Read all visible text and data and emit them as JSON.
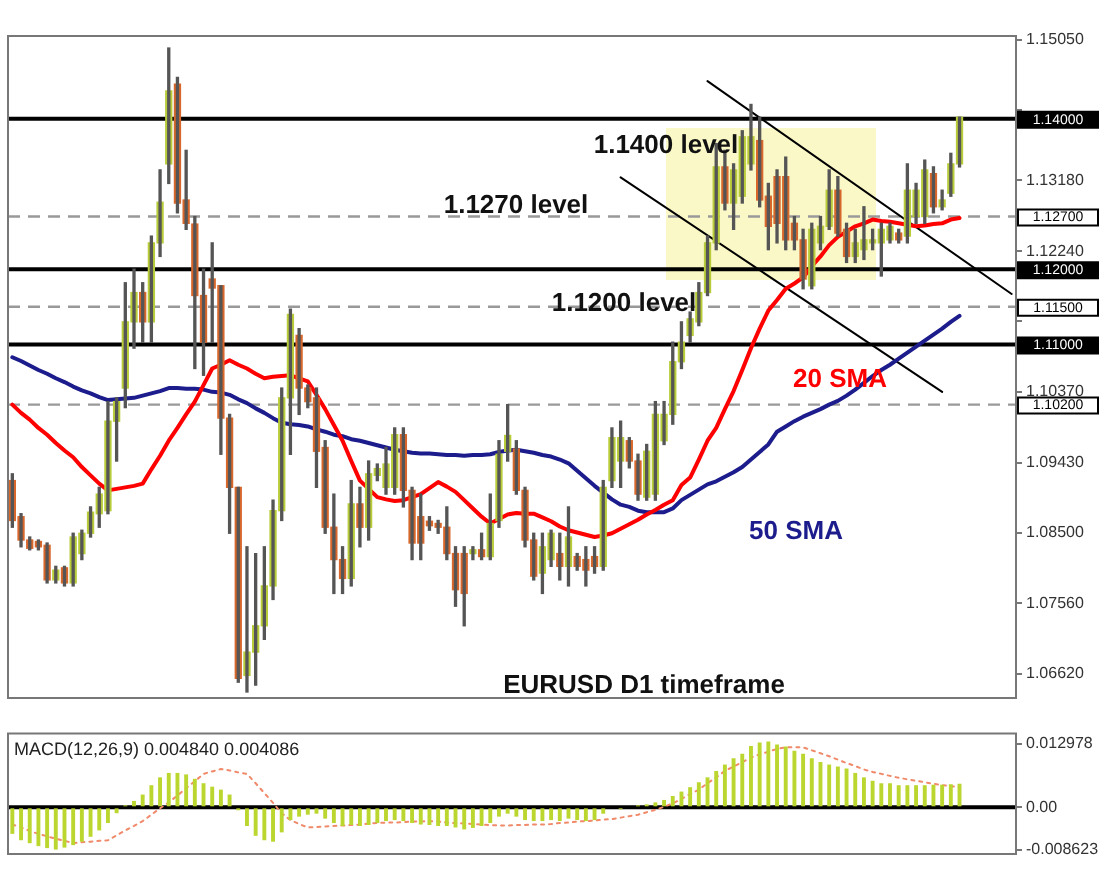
{
  "chart_data": [
    {
      "type": "candlestick",
      "categories": [
        null,
        null,
        null,
        null,
        null,
        null,
        null,
        null,
        null,
        null,
        null,
        null,
        null,
        null,
        null,
        null,
        null,
        null,
        null,
        null,
        null,
        null,
        null,
        null,
        null,
        null,
        null,
        null,
        null,
        null,
        null,
        null,
        null,
        null,
        null,
        null,
        null,
        null,
        null,
        null,
        null,
        null,
        null,
        null,
        null,
        null,
        null,
        null,
        null,
        null,
        null,
        null,
        null,
        null,
        null,
        null,
        null,
        null,
        null,
        null,
        null,
        null,
        null,
        null,
        null,
        null,
        null,
        null,
        null,
        null,
        null,
        null,
        null,
        null,
        null,
        null,
        null,
        null,
        null,
        null,
        null,
        null,
        null,
        null,
        null,
        null,
        null,
        null,
        null,
        null,
        null,
        null,
        null,
        null,
        null,
        null,
        null,
        null,
        null,
        null,
        null,
        null,
        null,
        null,
        null,
        null,
        null,
        null,
        null,
        null,
        null,
        null,
        null,
        null,
        null,
        null
      ],
      "ohlc": [
        [
          1.0919,
          1.0928,
          1.0857,
          1.0866
        ],
        [
          1.0871,
          1.0875,
          1.0831,
          1.084
        ],
        [
          1.084,
          1.0844,
          1.0827,
          1.0829
        ],
        [
          1.0838,
          1.084,
          1.0827,
          1.0831
        ],
        [
          1.0833,
          1.0836,
          1.0783,
          1.0787
        ],
        [
          1.0787,
          1.0805,
          1.0783,
          1.08
        ],
        [
          1.0803,
          1.0805,
          1.0779,
          1.0783
        ],
        [
          1.0783,
          1.0849,
          1.0779,
          1.0844
        ],
        [
          1.0822,
          1.0853,
          1.0814,
          1.0849
        ],
        [
          1.0849,
          1.0884,
          1.0844,
          1.0877
        ],
        [
          1.0875,
          1.091,
          1.0857,
          1.0901
        ],
        [
          1.0879,
          1.1024,
          1.0875,
          1.0998
        ],
        [
          1.0998,
          1.1029,
          1.0945,
          1.1024
        ],
        [
          1.1042,
          1.1182,
          1.1016,
          1.113
        ],
        [
          1.113,
          1.12,
          1.1095,
          1.1169
        ],
        [
          1.1169,
          1.1182,
          1.1103,
          1.113
        ],
        [
          1.113,
          1.1244,
          1.1103,
          1.1235
        ],
        [
          1.1235,
          1.1332,
          1.1217,
          1.1289
        ],
        [
          1.134,
          1.1494,
          1.1314,
          1.1437
        ],
        [
          1.1446,
          1.1455,
          1.1275,
          1.1288
        ],
        [
          1.1292,
          1.1358,
          1.1253,
          1.1261
        ],
        [
          1.126,
          1.127,
          1.1068,
          1.1165
        ],
        [
          1.1165,
          1.12,
          1.1059,
          1.1103
        ],
        [
          1.1187,
          1.1235,
          1.1103,
          1.1175
        ],
        [
          1.1178,
          1.1178,
          1.0954,
          1.1002
        ],
        [
          1.1002,
          1.1007,
          1.0849,
          1.091
        ],
        [
          1.091,
          1.091,
          1.0651,
          1.0656
        ],
        [
          1.066,
          1.0831,
          1.0638,
          1.0691
        ],
        [
          1.0691,
          1.0822,
          1.0647,
          1.0726
        ],
        [
          1.0726,
          1.0831,
          1.0708,
          1.0779
        ],
        [
          1.0779,
          1.0893,
          1.0761,
          1.0879
        ],
        [
          1.0879,
          1.1042,
          1.0866,
          1.1029
        ],
        [
          1.1029,
          1.1147,
          1.0954,
          1.114
        ],
        [
          1.1112,
          1.1121,
          1.1007,
          1.1042
        ],
        [
          1.1042,
          1.1046,
          1.1016,
          1.1024
        ],
        [
          1.1029,
          1.1042,
          1.091,
          1.0958
        ],
        [
          1.0963,
          1.0972,
          1.0849,
          1.0857
        ],
        [
          1.0857,
          1.0901,
          1.0769,
          1.0814
        ],
        [
          1.0814,
          1.0831,
          1.0769,
          1.0789
        ],
        [
          1.0789,
          1.0919,
          1.0779,
          1.0888
        ],
        [
          1.0888,
          1.091,
          1.0831,
          1.0857
        ],
        [
          1.0857,
          1.0945,
          1.084,
          1.0928
        ],
        [
          1.0926,
          1.0941,
          1.0919,
          1.0935
        ],
        [
          1.091,
          1.0963,
          1.0901,
          1.0941
        ],
        [
          1.091,
          1.0989,
          1.0901,
          1.098
        ],
        [
          1.098,
          1.0989,
          1.0884,
          1.0906
        ],
        [
          1.0906,
          1.091,
          1.0814,
          1.0836
        ],
        [
          1.0871,
          1.0901,
          1.0814,
          1.0836
        ],
        [
          1.0865,
          1.0871,
          1.0853,
          1.0859
        ],
        [
          1.0862,
          1.0866,
          1.0849,
          1.0857
        ],
        [
          1.0857,
          1.0884,
          1.0814,
          1.0822
        ],
        [
          1.0822,
          1.0831,
          1.0752,
          1.0774
        ],
        [
          1.0822,
          1.0831,
          1.0726,
          1.0769
        ],
        [
          1.0822,
          1.0831,
          1.0814,
          1.0827
        ],
        [
          1.0827,
          1.0849,
          1.0814,
          1.0818
        ],
        [
          1.0818,
          1.0901,
          1.0814,
          1.0862
        ],
        [
          1.0866,
          1.0972,
          1.0857,
          1.0954
        ],
        [
          1.0958,
          1.102,
          1.0945,
          1.0979
        ],
        [
          1.0961,
          1.0972,
          1.0901,
          1.0906
        ],
        [
          1.0906,
          1.091,
          1.0831,
          1.084
        ],
        [
          1.084,
          1.0849,
          1.0787,
          1.0792
        ],
        [
          1.0796,
          1.0849,
          1.0769,
          1.0831
        ],
        [
          1.0814,
          1.0853,
          1.0805,
          1.0849
        ],
        [
          1.0822,
          1.0849,
          1.0787,
          1.0805
        ],
        [
          1.0805,
          1.0884,
          1.0779,
          1.0844
        ],
        [
          1.0818,
          1.0822,
          1.08,
          1.0805
        ],
        [
          1.0814,
          1.0831,
          1.0779,
          1.08
        ],
        [
          1.0818,
          1.0831,
          1.0796,
          1.0805
        ],
        [
          1.0805,
          1.0919,
          1.08,
          1.091
        ],
        [
          1.0919,
          1.0989,
          1.091,
          1.0976
        ],
        [
          1.0945,
          1.0998,
          1.091,
          1.0976
        ],
        [
          1.0972,
          1.0976,
          1.0936,
          1.0945
        ],
        [
          1.0945,
          1.0954,
          1.0893,
          1.0901
        ],
        [
          1.0897,
          1.0967,
          1.0893,
          1.0958
        ],
        [
          1.0901,
          1.1024,
          1.0893,
          1.1007
        ],
        [
          1.0972,
          1.1024,
          1.0967,
          1.1007
        ],
        [
          1.1007,
          1.1103,
          1.0994,
          1.1077
        ],
        [
          1.1077,
          1.113,
          1.1068,
          1.1103
        ],
        [
          1.1112,
          1.1143,
          1.1103,
          1.1134
        ],
        [
          1.113,
          1.1182,
          1.1125,
          1.1169
        ],
        [
          1.1169,
          1.1244,
          1.1165,
          1.1235
        ],
        [
          1.1235,
          1.1367,
          1.1226,
          1.1336
        ],
        [
          1.1336,
          1.1358,
          1.1279,
          1.1288
        ],
        [
          1.1288,
          1.134,
          1.1253,
          1.1332
        ],
        [
          1.1297,
          1.1384,
          1.1288,
          1.1376
        ],
        [
          1.134,
          1.1419,
          1.1332,
          1.1376
        ],
        [
          1.1371,
          1.1402,
          1.1283,
          1.1292
        ],
        [
          1.1297,
          1.1314,
          1.1226,
          1.1257
        ],
        [
          1.1323,
          1.1332,
          1.1235,
          1.1261
        ],
        [
          1.1323,
          1.1349,
          1.1226,
          1.1239
        ],
        [
          1.1261,
          1.127,
          1.1226,
          1.1239
        ],
        [
          1.1239,
          1.1253,
          1.1174,
          1.1187
        ],
        [
          1.1178,
          1.1261,
          1.1174,
          1.1253
        ],
        [
          1.1235,
          1.127,
          1.1226,
          1.1257
        ],
        [
          1.1257,
          1.1332,
          1.1253,
          1.1305
        ],
        [
          1.1305,
          1.1323,
          1.1244,
          1.1248
        ],
        [
          1.1253,
          1.1261,
          1.1209,
          1.1217
        ],
        [
          1.1217,
          1.1253,
          1.1209,
          1.1235
        ],
        [
          1.1226,
          1.1283,
          1.1213,
          1.1239
        ],
        [
          1.1235,
          1.1253,
          1.1226,
          1.1239
        ],
        [
          1.1235,
          1.1261,
          1.1191,
          1.1253
        ],
        [
          1.1239,
          1.1261,
          1.1235,
          1.1257
        ],
        [
          1.1248,
          1.1253,
          1.1235,
          1.1239
        ],
        [
          1.1244,
          1.134,
          1.1235,
          1.1305
        ],
        [
          1.127,
          1.1314,
          1.1261,
          1.1305
        ],
        [
          1.127,
          1.1345,
          1.1261,
          1.1332
        ],
        [
          1.1327,
          1.1336,
          1.1275,
          1.1283
        ],
        [
          1.1283,
          1.1305,
          1.1279,
          1.1292
        ],
        [
          1.1301,
          1.1354,
          1.1297,
          1.134
        ],
        [
          1.134,
          1.1402,
          1.1336,
          1.1402
        ],
        null,
        null,
        null,
        null,
        null,
        null
      ],
      "series": [
        {
          "name": "20 SMA",
          "type": "line",
          "color": "#ff0000",
          "values": [
            1.102,
            1.1009,
            1.1,
            1.0989,
            1.098,
            1.0969,
            1.0959,
            1.095,
            1.0937,
            1.0926,
            1.0915,
            1.0906,
            1.0908,
            1.091,
            1.0912,
            1.0915,
            1.0934,
            1.0952,
            1.0972,
            1.0989,
            1.1007,
            1.1024,
            1.1046,
            1.1068,
            1.1073,
            1.1079,
            1.1073,
            1.1068,
            1.1061,
            1.1055,
            1.1057,
            1.1058,
            1.1059,
            1.1055,
            1.1051,
            1.1033,
            1.1014,
            1.0993,
            1.0972,
            1.0945,
            1.0919,
            1.0908,
            1.0897,
            1.0894,
            1.0892,
            1.0893,
            1.0897,
            1.0901,
            1.0909,
            1.0917,
            1.0911,
            1.0904,
            1.0893,
            1.0882,
            1.0871,
            1.0862,
            1.0868,
            1.0874,
            1.0876,
            1.0875,
            1.0875,
            1.087,
            1.0865,
            1.0858,
            1.0853,
            1.085,
            1.0847,
            1.0844,
            1.0846,
            1.0849,
            1.0855,
            1.0861,
            1.0867,
            1.0874,
            1.088,
            1.0887,
            1.0893,
            1.0913,
            1.0923,
            1.0947,
            1.0972,
            1.0989,
            1.1014,
            1.1038,
            1.1066,
            1.1095,
            1.1121,
            1.1145,
            1.1159,
            1.1174,
            1.1181,
            1.1189,
            1.1204,
            1.1217,
            1.1232,
            1.1243,
            1.125,
            1.1257,
            1.1261,
            1.1266,
            1.1264,
            1.1263,
            1.1261,
            1.1259,
            1.1257,
            1.1258,
            1.126,
            1.1261,
            1.1266,
            1.1268,
            null,
            null,
            null,
            null,
            null,
            null
          ]
        },
        {
          "name": "50 SMA",
          "type": "line",
          "color": "#1c1c8c",
          "values": [
            1.1083,
            1.1078,
            1.1072,
            1.1066,
            1.1061,
            1.1055,
            1.105,
            1.1044,
            1.1039,
            1.1035,
            1.103,
            1.1026,
            1.1027,
            1.1028,
            1.1029,
            1.1032,
            1.1035,
            1.1038,
            1.1042,
            1.1042,
            1.1041,
            1.1041,
            1.104,
            1.1037,
            1.1036,
            1.1033,
            1.1027,
            1.1022,
            1.1015,
            1.1009,
            1.1002,
            1.0996,
            1.0994,
            1.0993,
            1.0991,
            1.0987,
            1.0984,
            1.098,
            1.0978,
            1.0974,
            1.0972,
            1.0969,
            1.0966,
            1.0963,
            1.096,
            1.0958,
            1.0956,
            1.0955,
            1.0955,
            1.0954,
            1.0953,
            1.0953,
            1.0952,
            1.0953,
            1.0953,
            1.0954,
            1.0957,
            1.0959,
            1.096,
            1.0958,
            1.0956,
            1.0953,
            1.0951,
            1.0947,
            1.0942,
            1.0932,
            1.0922,
            1.0912,
            1.0903,
            1.0894,
            1.0887,
            1.0884,
            1.0879,
            1.0877,
            1.0877,
            1.0877,
            1.0882,
            1.0893,
            1.09,
            1.0907,
            1.0914,
            1.0918,
            1.0924,
            1.093,
            1.0937,
            1.0947,
            1.0957,
            1.0967,
            1.0984,
            1.0991,
            1.0998,
            1.1004,
            1.1009,
            1.1014,
            1.102,
            1.1025,
            1.1032,
            1.104,
            1.1049,
            1.1058,
            1.1066,
            1.1073,
            1.1081,
            1.1089,
            1.1097,
            1.1105,
            1.1113,
            1.1121,
            1.113,
            1.1138,
            null,
            null,
            null,
            null,
            null,
            null
          ]
        },
        {
          "type": "line",
          "color": "#000000",
          "values": [
            null,
            null,
            null,
            null,
            null,
            null,
            null,
            null,
            null,
            null,
            null,
            null,
            null,
            null,
            null,
            null,
            null,
            null,
            null,
            null,
            null,
            null,
            null,
            null,
            null,
            null,
            null,
            null,
            null,
            null,
            null,
            null,
            null,
            null,
            null,
            null,
            null,
            null,
            null,
            null,
            null,
            null,
            null,
            null,
            null,
            null,
            null,
            null,
            null,
            null,
            null,
            null,
            null,
            null,
            null,
            null,
            null,
            null,
            null,
            null,
            null,
            null,
            null,
            null,
            null,
            null,
            null,
            null,
            null,
            null,
            null,
            null,
            null,
            null,
            null,
            null,
            null,
            null,
            null,
            null,
            1.145,
            null,
            null,
            null,
            null,
            null,
            null,
            null,
            null,
            null,
            null,
            null,
            null,
            null,
            null,
            null,
            null,
            null,
            null,
            null,
            null,
            null,
            null,
            null,
            null,
            null,
            null,
            null,
            null,
            null,
            null,
            null,
            null,
            null,
            null,
            1.1167
          ]
        },
        {
          "type": "line",
          "color": "#000000",
          "values": [
            null,
            null,
            null,
            null,
            null,
            null,
            null,
            null,
            null,
            null,
            null,
            null,
            null,
            null,
            null,
            null,
            null,
            null,
            null,
            null,
            null,
            null,
            null,
            null,
            null,
            null,
            null,
            null,
            null,
            null,
            null,
            null,
            null,
            null,
            null,
            null,
            null,
            null,
            null,
            null,
            null,
            null,
            null,
            null,
            null,
            null,
            null,
            null,
            null,
            null,
            null,
            null,
            null,
            null,
            null,
            null,
            null,
            null,
            null,
            null,
            null,
            null,
            null,
            null,
            null,
            null,
            null,
            null,
            null,
            null,
            1.1322,
            null,
            null,
            null,
            null,
            null,
            null,
            null,
            null,
            null,
            null,
            null,
            null,
            null,
            null,
            null,
            null,
            null,
            null,
            null,
            null,
            null,
            null,
            null,
            null,
            null,
            null,
            null,
            null,
            null,
            null,
            null,
            null,
            null,
            null,
            null,
            null,
            1.1037,
            null,
            null,
            null,
            null,
            null,
            null,
            null,
            null
          ]
        }
      ],
      "ylim": [
        1.063,
        1.151
      ],
      "yticks": [
        {
          "value": 1.1505,
          "label": "1.15050"
        },
        {
          "value": 1.1412,
          "label": null
        },
        {
          "value": 1.1318,
          "label": "1.13180"
        },
        {
          "value": 1.1224,
          "label": "1.12240"
        },
        {
          "value": 1.1131,
          "label": null
        },
        {
          "value": 1.1037,
          "label": "1.10370"
        },
        {
          "value": 1.0943,
          "label": "1.09430"
        },
        {
          "value": 1.085,
          "label": "1.08500"
        },
        {
          "value": 1.0756,
          "label": "1.07560"
        },
        {
          "value": 1.0662,
          "label": "1.06620"
        }
      ],
      "ref_lines": [
        {
          "axis": "y",
          "value": 1.14,
          "label": "1.14000",
          "color": "#000000",
          "line_style": "solid"
        },
        {
          "axis": "y",
          "value": 1.127,
          "label": "1.12700",
          "color": "#999999",
          "line_style": "dashed"
        },
        {
          "axis": "y",
          "value": 1.12,
          "label": "1.12000",
          "color": "#000000",
          "line_style": "solid"
        },
        {
          "axis": "y",
          "value": 1.115,
          "label": "1.11500",
          "color": "#999999",
          "line_style": "dashed"
        },
        {
          "axis": "y",
          "value": 1.11,
          "label": "1.11000",
          "color": "#000000",
          "line_style": "solid"
        },
        {
          "axis": "y",
          "value": 1.102,
          "label": "1.10200",
          "color": "#999999",
          "line_style": "dashed"
        }
      ],
      "annotations": [
        "1.1400 level",
        "1.1270 level",
        "1.1200 level",
        "EURUSD D1 timeframe"
      ],
      "tick_labels": "y"
    },
    {
      "type": "bar",
      "title": "MACD(12,26,9) 0.004840 0.004086",
      "categories": [
        null,
        null,
        null,
        null,
        null,
        null,
        null,
        null,
        null,
        null,
        null,
        null,
        null,
        null,
        null,
        null,
        null,
        null,
        null,
        null,
        null,
        null,
        null,
        null,
        null,
        null,
        null,
        null,
        null,
        null,
        null,
        null,
        null,
        null,
        null,
        null,
        null,
        null,
        null,
        null,
        null,
        null,
        null,
        null,
        null,
        null,
        null,
        null,
        null,
        null,
        null,
        null,
        null,
        null,
        null,
        null,
        null,
        null,
        null,
        null,
        null,
        null,
        null,
        null,
        null,
        null,
        null,
        null,
        null,
        null,
        null,
        null,
        null,
        null,
        null,
        null,
        null,
        null,
        null,
        null,
        null,
        null,
        null,
        null,
        null,
        null,
        null,
        null,
        null,
        null,
        null,
        null,
        null,
        null,
        null,
        null,
        null,
        null,
        null,
        null,
        null,
        null,
        null,
        null,
        null,
        null,
        null,
        null,
        null,
        null,
        null,
        null,
        null,
        null,
        null,
        null
      ],
      "series": [
        {
          "type": "bar",
          "color": "#bcd630",
          "values": [
            -0.0054,
            -0.0067,
            -0.0073,
            -0.0079,
            -0.0083,
            -0.0086,
            -0.0082,
            -0.0077,
            -0.007,
            -0.006,
            -0.0047,
            -0.0032,
            -0.0012,
            0.0004,
            0.0013,
            0.0026,
            0.0045,
            0.0061,
            0.007,
            0.007,
            0.0067,
            0.0058,
            0.0049,
            0.0042,
            0.0036,
            0.0026,
            -0.0006,
            -0.0038,
            -0.0058,
            -0.0067,
            -0.007,
            -0.0051,
            -0.0026,
            -0.0019,
            -0.0015,
            -0.0013,
            -0.0023,
            -0.0032,
            -0.0038,
            -0.0036,
            -0.0038,
            -0.0036,
            -0.0032,
            -0.0028,
            -0.0026,
            -0.0028,
            -0.0032,
            -0.0035,
            -0.0036,
            -0.0038,
            -0.0038,
            -0.0041,
            -0.0045,
            -0.0042,
            -0.0038,
            -0.0032,
            -0.0019,
            -0.0013,
            -0.0019,
            -0.0026,
            -0.0028,
            -0.0028,
            -0.0026,
            -0.0028,
            -0.0023,
            -0.0026,
            -0.0028,
            -0.0026,
            -0.0013,
            null,
            -0.0004,
            null,
            0.0004,
            0.0006,
            0.001,
            0.0015,
            0.0023,
            0.0032,
            0.0041,
            0.0051,
            0.0061,
            0.0074,
            0.0087,
            0.01,
            0.0109,
            0.0125,
            0.0132,
            0.0134,
            0.0128,
            0.0124,
            0.0115,
            0.0109,
            0.01,
            0.0092,
            0.0087,
            0.0083,
            0.0079,
            0.007,
            0.0061,
            0.0054,
            0.0049,
            0.0049,
            0.0045,
            0.0045,
            0.0045,
            0.0045,
            0.0046,
            0.0046,
            0.0047,
            0.0048,
            null,
            null,
            null,
            null,
            null,
            null
          ]
        },
        {
          "type": "line",
          "color": "#f08a6a",
          "line_style": "dotted",
          "values": [
            -0.0035,
            -0.0041,
            -0.0048,
            -0.0054,
            -0.0059,
            -0.0064,
            -0.0068,
            -0.0073,
            -0.0071,
            -0.007,
            -0.0068,
            -0.0067,
            -0.0057,
            -0.0047,
            -0.0038,
            -0.0028,
            -0.0015,
            -0.0002,
            0.001,
            0.0024,
            0.0039,
            0.0053,
            0.0068,
            0.0073,
            0.0078,
            0.0075,
            0.0071,
            0.0068,
            0.0049,
            0.0029,
            0.0009,
            -0.0012,
            -0.0026,
            -0.0034,
            -0.0041,
            -0.004,
            -0.0039,
            -0.0038,
            -0.0037,
            -0.0036,
            -0.0035,
            -0.0033,
            -0.0032,
            -0.0031,
            -0.0031,
            -0.003,
            -0.0029,
            -0.0029,
            -0.0028,
            -0.0029,
            -0.0031,
            -0.0032,
            -0.0033,
            -0.0034,
            -0.0035,
            -0.0036,
            -0.0037,
            -0.0037,
            -0.0036,
            -0.0036,
            -0.0035,
            -0.0035,
            -0.0034,
            -0.0032,
            -0.0031,
            -0.0029,
            -0.0028,
            -0.0027,
            -0.0025,
            -0.0024,
            -0.0021,
            -0.0018,
            -0.0015,
            -0.001,
            -0.0005,
            0.0001,
            0.0008,
            0.0017,
            0.0027,
            0.0036,
            0.0049,
            0.0061,
            0.0074,
            0.0083,
            0.0092,
            0.0101,
            0.0108,
            0.0113,
            0.0119,
            0.0122,
            0.0122,
            0.0122,
            0.0116,
            0.011,
            0.0104,
            0.0097,
            0.009,
            0.0084,
            0.0077,
            0.0072,
            0.0068,
            0.0064,
            0.006,
            0.0057,
            0.0054,
            0.0051,
            0.0048,
            0.0045,
            0.0043,
            0.0041,
            null,
            null,
            null,
            null,
            null,
            null
          ]
        }
      ],
      "ylim": [
        -0.0095,
        0.015
      ],
      "yticks": [
        0.012978,
        {
          "value": 0,
          "label": "0.00"
        },
        -0.008623
      ],
      "ref_lines": [
        {
          "axis": "y",
          "value": 0,
          "color": "#000000",
          "line_style": "solid"
        }
      ],
      "tick_labels": "y"
    }
  ]
}
